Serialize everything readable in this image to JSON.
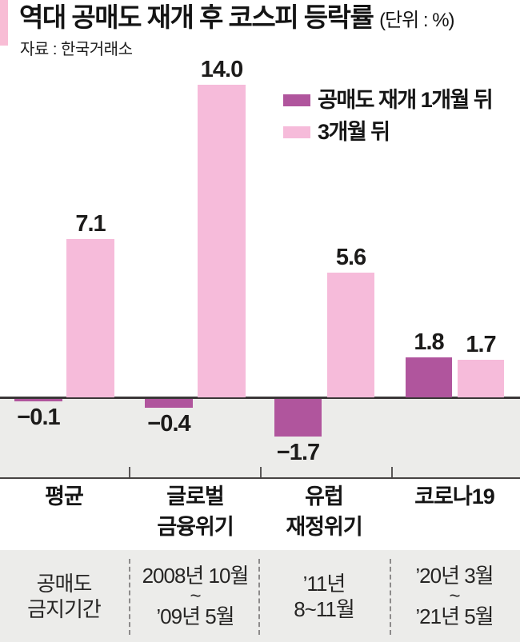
{
  "header": {
    "title": "역대 공매도 재개 후 코스피 등락률",
    "unit": "(단위 : %)",
    "source": "자료 : 한국거래소"
  },
  "legend": {
    "items": [
      {
        "label": "공매도 재개 1개월 뒤",
        "color": "#b0559d"
      },
      {
        "label": "3개월 뒤",
        "color": "#f6bbda"
      }
    ]
  },
  "chart_data": {
    "type": "bar",
    "title": "역대 공매도 재개 후 코스피 등락률",
    "unit": "%",
    "categories": [
      "평균",
      "글로벌 금융위기",
      "유럽 재정위기",
      "코로나19"
    ],
    "category_lines": [
      [
        "평균"
      ],
      [
        "글로벌",
        "금융위기"
      ],
      [
        "유럽",
        "재정위기"
      ],
      [
        "코로나19"
      ]
    ],
    "series": [
      {
        "name": "공매도 재개 1개월 뒤",
        "color": "#b0559d",
        "values": [
          -0.1,
          -0.4,
          -1.7,
          1.8
        ],
        "labels": [
          "−0.1",
          "−0.4",
          "−1.7",
          "1.8"
        ]
      },
      {
        "name": "3개월 뒤",
        "color": "#f6bbda",
        "values": [
          7.1,
          14.0,
          5.6,
          1.7
        ],
        "labels": [
          "7.1",
          "14.0",
          "5.6",
          "1.7"
        ]
      }
    ],
    "baseline": 0,
    "ylim": [
      -2.5,
      15
    ],
    "grid": false,
    "legend_position": "top-right"
  },
  "table": {
    "row_label_lines": [
      "공매도",
      "금지기간"
    ],
    "cells": [
      {
        "lines": [
          "2008년 10월",
          "~",
          "’09년 5월"
        ]
      },
      {
        "lines": [
          "’11년",
          "8~11월"
        ]
      },
      {
        "lines": [
          "’20년 3월",
          "~",
          "’21년 5월"
        ]
      }
    ]
  },
  "colors": {
    "accent_dark": "#b0559d",
    "accent_light": "#f6bbda",
    "title_marker": "#f8bdd5",
    "band_gray": "#ececea",
    "line_dark": "#3a3737"
  }
}
